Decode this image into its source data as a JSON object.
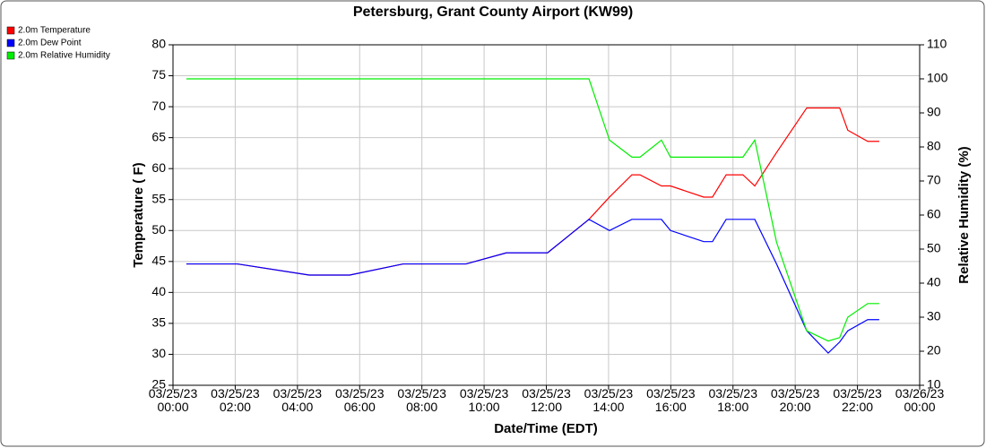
{
  "chart_data": {
    "type": "line",
    "title": "Petersburg, Grant County Airport (KW99)",
    "x_label": "Date/Time (EDT)",
    "y_label": "Temperature ( F)",
    "y2_label": "Relative Humidity (%)",
    "x": [
      0.43,
      2.07,
      4.38,
      5.68,
      7.4,
      9.42,
      10.72,
      12.04,
      13.37,
      14.03,
      14.75,
      15.01,
      15.7,
      15.99,
      17.06,
      17.34,
      17.78,
      18.32,
      18.7,
      19.4,
      20.37,
      21.06,
      21.43,
      21.69,
      22.33,
      22.7
    ],
    "series": [
      {
        "name": "2.0m Temperature",
        "color": "#ff0000",
        "values": [
          44.6,
          44.6,
          42.8,
          42.8,
          44.6,
          44.6,
          46.4,
          46.4,
          51.8,
          55.4,
          59,
          59,
          57.2,
          57.2,
          55.4,
          55.4,
          59,
          59,
          57.2,
          62.6,
          69.8,
          69.8,
          69.8,
          66.2,
          64.4,
          64.4
        ]
      },
      {
        "name": "2.0m Dew Point",
        "color": "#0000ff",
        "values": [
          44.6,
          44.6,
          42.8,
          42.8,
          44.6,
          44.6,
          46.4,
          46.4,
          51.8,
          50,
          51.8,
          51.8,
          51.8,
          50,
          48.2,
          48.2,
          51.8,
          51.8,
          51.8,
          44.6,
          33.8,
          30.2,
          32,
          33.8,
          35.6,
          35.6
        ]
      },
      {
        "name": "2.0m Relative Humidity",
        "color": "#00ee00",
        "axis": "y2",
        "values": [
          100,
          100,
          100,
          100,
          100,
          100,
          100,
          100,
          100,
          82,
          77,
          77,
          82,
          77,
          77,
          77,
          77,
          77,
          82,
          52,
          26,
          23,
          24,
          30,
          34,
          34
        ]
      }
    ],
    "xlim": [
      0,
      24
    ],
    "xticks": [
      {
        "value": 0,
        "label": "03/25/23 00:00"
      },
      {
        "value": 2,
        "label": "03/25/23 02:00"
      },
      {
        "value": 4,
        "label": "03/25/23 04:00"
      },
      {
        "value": 6,
        "label": "03/25/23 06:00"
      },
      {
        "value": 8,
        "label": "03/25/23 08:00"
      },
      {
        "value": 10,
        "label": "03/25/23 10:00"
      },
      {
        "value": 12,
        "label": "03/25/23 12:00"
      },
      {
        "value": 14,
        "label": "03/25/23 14:00"
      },
      {
        "value": 16,
        "label": "03/25/23 16:00"
      },
      {
        "value": 18,
        "label": "03/25/23 18:00"
      },
      {
        "value": 20,
        "label": "03/25/23 20:00"
      },
      {
        "value": 22,
        "label": "03/25/23 22:00"
      },
      {
        "value": 24,
        "label": "03/26/23 00:00"
      }
    ],
    "ylim": [
      25,
      80
    ],
    "yticks": [
      25,
      30,
      35,
      40,
      45,
      50,
      55,
      60,
      65,
      70,
      75,
      80
    ],
    "y2lim": [
      10,
      110
    ],
    "y2ticks": [
      10,
      20,
      30,
      40,
      50,
      60,
      70,
      80,
      90,
      100,
      110
    ],
    "grid": true,
    "legend": "top-left"
  }
}
